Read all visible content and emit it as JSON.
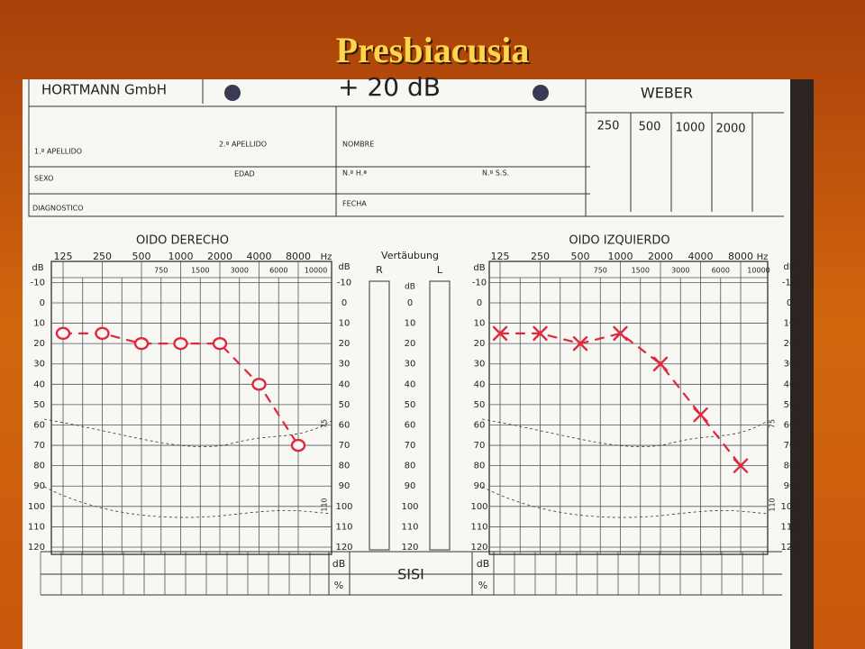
{
  "title": "Presbiacusia",
  "form": {
    "company": "HORTMANN GmbH",
    "gain": "+ 20 dB",
    "weber": {
      "title": "WEBER",
      "frequencies": [
        "250",
        "500",
        "1000",
        "2000"
      ]
    },
    "fields": [
      "1.º APELLIDO",
      "2.º APELLIDO",
      "NOMBRE",
      "SEXO",
      "EDAD",
      "N.º H.ª",
      "N.º S.S.",
      "DIAGNOSTICO",
      "FECHA"
    ]
  },
  "masking": {
    "title": "Vertäubung",
    "r": "R",
    "l": "L",
    "unit": "dB",
    "ticks": [
      0,
      10,
      20,
      30,
      40,
      50,
      60,
      70,
      80,
      90,
      100,
      110,
      120
    ]
  },
  "sisi": {
    "title": "SISI",
    "rows": [
      "dB",
      "%"
    ]
  },
  "chart_data": [
    {
      "type": "line",
      "title": "OIDO DERECHO",
      "marker": "o",
      "color": "#e0283c",
      "categories": [
        "125",
        "250",
        "500",
        "1000",
        "2000",
        "4000",
        "8000"
      ],
      "minor_categories": [
        "750",
        "1500",
        "3000",
        "6000",
        "10000"
      ],
      "x_unit": "Hz",
      "y_label": "dB",
      "values": [
        15,
        15,
        20,
        20,
        20,
        40,
        70
      ],
      "ylim": [
        -10,
        120
      ],
      "yticks": [
        -10,
        0,
        10,
        20,
        30,
        40,
        50,
        60,
        70,
        80,
        90,
        100,
        110,
        120
      ],
      "inverted": true,
      "grid": true,
      "annotations": [
        "75",
        "110"
      ]
    },
    {
      "type": "line",
      "title": "OIDO IZQUIERDO",
      "marker": "x",
      "color": "#e0283c",
      "categories": [
        "125",
        "250",
        "500",
        "1000",
        "2000",
        "4000",
        "8000"
      ],
      "minor_categories": [
        "750",
        "1500",
        "3000",
        "6000",
        "10000"
      ],
      "x_unit": "Hz",
      "y_label": "dB",
      "values": [
        15,
        15,
        20,
        15,
        30,
        55,
        80
      ],
      "ylim": [
        -10,
        120
      ],
      "yticks": [
        -10,
        0,
        10,
        20,
        30,
        40,
        50,
        60,
        70,
        80,
        90,
        100,
        110,
        120
      ],
      "inverted": true,
      "grid": true,
      "annotations": [
        "75",
        "110"
      ]
    }
  ]
}
